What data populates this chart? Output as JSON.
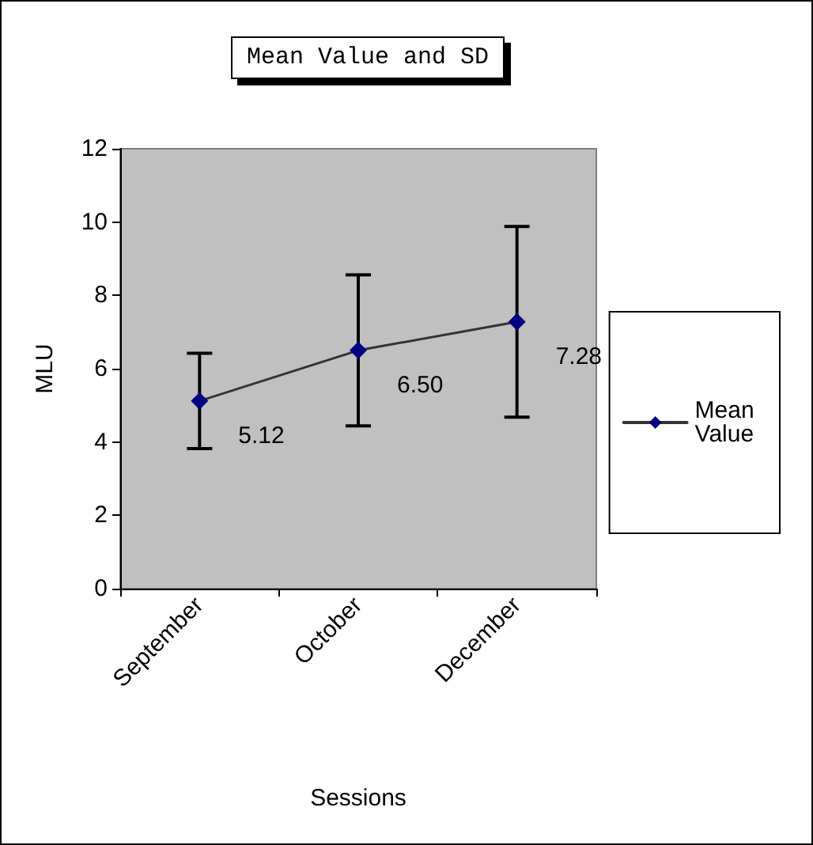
{
  "chart_data": {
    "type": "line",
    "title": "Mean Value and SD",
    "xlabel": "Sessions",
    "ylabel": "MLU",
    "categories": [
      "September",
      "October",
      "December"
    ],
    "series": [
      {
        "name": "Mean Value",
        "color": "#000080",
        "values": [
          5.12,
          6.5,
          7.28
        ],
        "value_labels": [
          "5.12",
          "6.50",
          "7.28"
        ],
        "errors": [
          1.3,
          2.06,
          2.6
        ]
      }
    ],
    "ylim": [
      0,
      12
    ],
    "yticks": [
      0,
      2,
      4,
      6,
      8,
      10,
      12
    ],
    "grid": false,
    "legend": "right",
    "marker": "diamond",
    "line_style": "solid"
  }
}
